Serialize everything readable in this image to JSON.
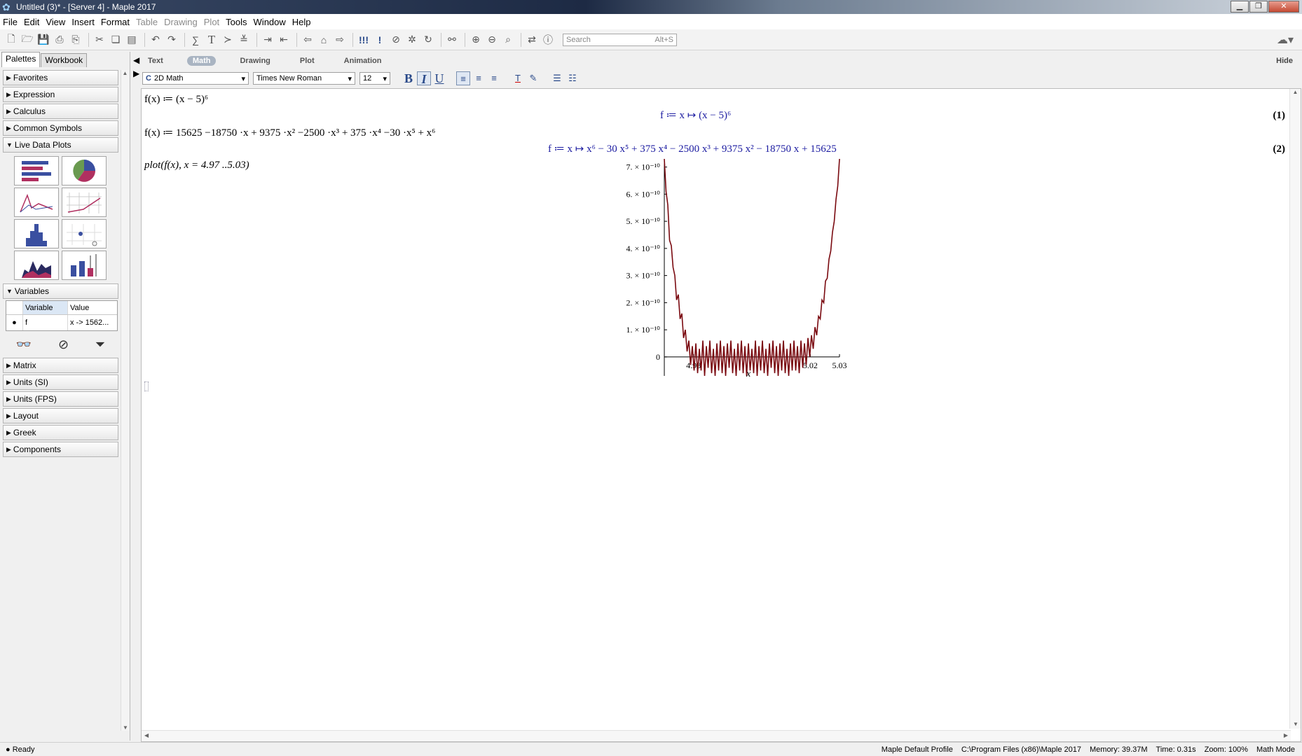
{
  "window": {
    "title": "Untitled (3)* - [Server 4] - Maple 2017"
  },
  "menu": [
    "File",
    "Edit",
    "View",
    "Insert",
    "Format",
    "Table",
    "Drawing",
    "Plot",
    "Tools",
    "Window",
    "Help"
  ],
  "menu_disabled": [
    "Table",
    "Drawing",
    "Plot"
  ],
  "toolbar": {
    "search_placeholder": "Search",
    "search_shortcut": "Alt+S"
  },
  "panel": {
    "tabs": [
      "Palettes",
      "Workbook"
    ],
    "palettes_top": [
      "Favorites",
      "Expression",
      "Calculus",
      "Common Symbols"
    ],
    "live_data_plots": "Live Data Plots",
    "variables": "Variables",
    "var_table": {
      "col_variable": "Variable",
      "col_value": "Value",
      "row_name": "f",
      "row_value": "x -> 1562..."
    },
    "palettes_bottom": [
      "Matrix",
      "Units (SI)",
      "Units (FPS)",
      "Layout",
      "Greek",
      "Components"
    ]
  },
  "context": {
    "tabs": [
      "Text",
      "Math",
      "Drawing",
      "Plot",
      "Animation"
    ],
    "active_tab": "Math",
    "hide": "Hide",
    "mode": "2D Math",
    "font": "Times New Roman",
    "size": "12"
  },
  "worksheet": {
    "in1": "f(x) ≔ (x − 5)⁶",
    "out1": "f ≔ x ↦ (x − 5)⁶",
    "label1": "(1)",
    "in2": "f(x) ≔ 15625 −18750 ·x + 9375 ·x² −2500 ·x³ + 375 ·x⁴ −30 ·x⁵ + x⁶",
    "out2": "f ≔ x ↦ x⁶ − 30 x⁵ + 375 x⁴ − 2500 x³ + 9375 x² − 18750 x + 15625",
    "label2": "(2)",
    "in3": "plot(f(x), x = 4.97 ..5.03)"
  },
  "chart_data": {
    "type": "line",
    "title": "",
    "xlabel": "x",
    "ylabel": "",
    "xlim": [
      4.97,
      5.03
    ],
    "ylim": [
      -7e-11,
      7.3e-10
    ],
    "x_ticks": [
      "4.98",
      "5.02",
      "5.03"
    ],
    "y_ticks": [
      {
        "value": 0,
        "label": "0"
      },
      {
        "value": 1e-10,
        "label": "1. × 10⁻¹⁰"
      },
      {
        "value": 2e-10,
        "label": "2. × 10⁻¹⁰"
      },
      {
        "value": 3e-10,
        "label": "3. × 10⁻¹⁰"
      },
      {
        "value": 4e-10,
        "label": "4. × 10⁻¹⁰"
      },
      {
        "value": 5e-10,
        "label": "5. × 10⁻¹⁰"
      },
      {
        "value": 6e-10,
        "label": "6. × 10⁻¹⁰"
      },
      {
        "value": 7e-10,
        "label": "7. × 10⁻¹⁰"
      }
    ],
    "series": [
      {
        "color": "#7a0a10",
        "x": [
          4.97,
          4.9706,
          4.9712,
          4.9718,
          4.9724,
          4.973,
          4.9736,
          4.9742,
          4.9748,
          4.9754,
          4.976,
          4.9766,
          4.9772,
          4.9778,
          4.9784,
          4.979,
          4.9796,
          4.9802,
          4.9808,
          4.9814,
          4.982,
          4.9826,
          4.9832,
          4.9838,
          4.9844,
          4.985,
          4.9856,
          4.9862,
          4.9868,
          4.9874,
          4.988,
          4.9886,
          4.9892,
          4.9898,
          4.9904,
          4.991,
          4.9916,
          4.9922,
          4.9928,
          4.9934,
          4.994,
          4.9946,
          4.9952,
          4.9958,
          4.9964,
          4.997,
          4.9976,
          4.9982,
          4.9988,
          4.9994,
          5.0,
          5.0006,
          5.0012,
          5.0018,
          5.0024,
          5.003,
          5.0036,
          5.0042,
          5.0048,
          5.0054,
          5.006,
          5.0066,
          5.0072,
          5.0078,
          5.0084,
          5.009,
          5.0096,
          5.0102,
          5.0108,
          5.0114,
          5.012,
          5.0126,
          5.0132,
          5.0138,
          5.0144,
          5.015,
          5.0156,
          5.0162,
          5.0168,
          5.0174,
          5.018,
          5.0186,
          5.0192,
          5.0198,
          5.0204,
          5.021,
          5.0216,
          5.0222,
          5.0228,
          5.0234,
          5.024,
          5.0246,
          5.0252,
          5.0258,
          5.0264,
          5.027,
          5.0276,
          5.0282,
          5.0288,
          5.0294,
          5.03
        ],
        "y": [
          7.3e-10,
          6.1e-10,
          5.6e-10,
          4.3e-10,
          4.1e-10,
          3.3e-10,
          3e-10,
          2.1e-10,
          2.3e-10,
          1.4e-10,
          1.6e-10,
          7e-11,
          1e-10,
          2e-11,
          6e-11,
          -3e-11,
          4e-11,
          -5e-11,
          5e-11,
          -6e-11,
          3e-11,
          -5e-11,
          6e-11,
          -7e-11,
          4e-11,
          -4e-11,
          6e-11,
          -6e-11,
          3e-11,
          -7e-11,
          5e-11,
          -5e-11,
          6e-11,
          -6e-11,
          4e-11,
          -7e-11,
          5e-11,
          -4e-11,
          6e-11,
          -6e-11,
          3e-11,
          -7e-11,
          5e-11,
          -5e-11,
          6e-11,
          -6e-11,
          4e-11,
          -7e-11,
          5e-11,
          -5e-11,
          3e-11,
          -6e-11,
          6e-11,
          -7e-11,
          4e-11,
          -5e-11,
          6e-11,
          -6e-11,
          3e-11,
          -7e-11,
          5e-11,
          -4e-11,
          6e-11,
          -6e-11,
          4e-11,
          -7e-11,
          5e-11,
          -5e-11,
          6e-11,
          -6e-11,
          3e-11,
          -7e-11,
          5e-11,
          -5e-11,
          6e-11,
          -5e-11,
          4e-11,
          -6e-11,
          6e-11,
          -4e-11,
          5e-11,
          -3e-11,
          7e-11,
          0.0,
          8e-11,
          3e-11,
          1.1e-10,
          8e-11,
          1.5e-10,
          1.4e-10,
          2.1e-10,
          2e-10,
          2.8e-10,
          2.9e-10,
          3.6e-10,
          3.9e-10,
          4.6e-10,
          5e-10,
          5.8e-10,
          6.3e-10,
          7.3e-10
        ]
      }
    ]
  },
  "status": {
    "ready": "Ready",
    "profile": "Maple Default Profile",
    "path": "C:\\Program Files (x86)\\Maple 2017",
    "memory": "Memory: 39.37M",
    "time": "Time: 0.31s",
    "zoom": "Zoom: 100%",
    "mode": "Math Mode"
  },
  "colors": {
    "output_blue": "#1a1aa0",
    "plot_line": "#7a0a10"
  }
}
